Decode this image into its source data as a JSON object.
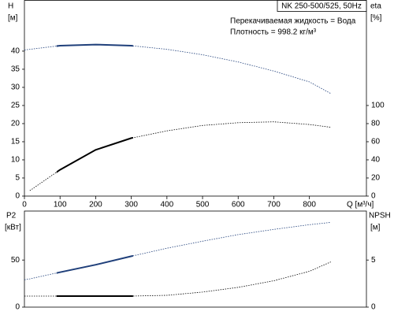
{
  "chart_data": [
    {
      "type": "line",
      "title": "NK 250-500/525, 50Hz",
      "notes": [
        "Перекачиваемая жидкость = Вода",
        "Плотность = 998.2 кг/м³"
      ],
      "x_label": "Q [м³/ч]",
      "y_label": "H",
      "y_unit": "[м]",
      "y2_label": "eta",
      "y2_unit": "[%]",
      "xlim": [
        0,
        960
      ],
      "xticks": [
        0,
        100,
        200,
        300,
        400,
        500,
        600,
        700,
        800
      ],
      "ylim": [
        0,
        54
      ],
      "yticks": [
        0,
        5,
        10,
        15,
        20,
        25,
        30,
        35,
        40
      ],
      "y2lim": [
        0,
        216
      ],
      "y2ticks": [
        0,
        20,
        40,
        60,
        80,
        100
      ],
      "solid_range": [
        90,
        305
      ],
      "x": [
        0,
        15,
        100,
        200,
        300,
        400,
        500,
        600,
        700,
        800,
        860
      ],
      "series": [
        {
          "color": "#1f3f7a",
          "values": [
            40.3,
            40.5,
            41.5,
            41.8,
            41.5,
            40.5,
            39,
            37,
            34.5,
            31.5,
            28.3
          ]
        },
        {
          "color": "#000000",
          "axis": "y2",
          "values": [
            null,
            6,
            29,
            51,
            64,
            72,
            78,
            81,
            82,
            79,
            76
          ]
        }
      ]
    },
    {
      "type": "line",
      "y_label": "P2",
      "y_unit": "[кВт]",
      "y2_label": "NPSH",
      "y2_unit": "[м]",
      "xlim": [
        0,
        960
      ],
      "ylim": [
        0,
        102
      ],
      "yticks": [
        0,
        50
      ],
      "y2lim": [
        0,
        10.2
      ],
      "y2ticks": [
        0,
        5
      ],
      "solid_range": [
        90,
        305
      ],
      "x": [
        0,
        15,
        100,
        200,
        300,
        400,
        500,
        600,
        700,
        800,
        860
      ],
      "series": [
        {
          "color": "#1f3f7a",
          "values": [
            29,
            30,
            37,
            45,
            54,
            62.5,
            70,
            77,
            82.5,
            87.5,
            90
          ]
        },
        {
          "color": "#000000",
          "axis": "y2",
          "values": [
            1.17,
            1.17,
            1.17,
            1.17,
            1.17,
            1.25,
            1.6,
            2.1,
            2.8,
            3.8,
            4.8
          ]
        }
      ]
    }
  ]
}
